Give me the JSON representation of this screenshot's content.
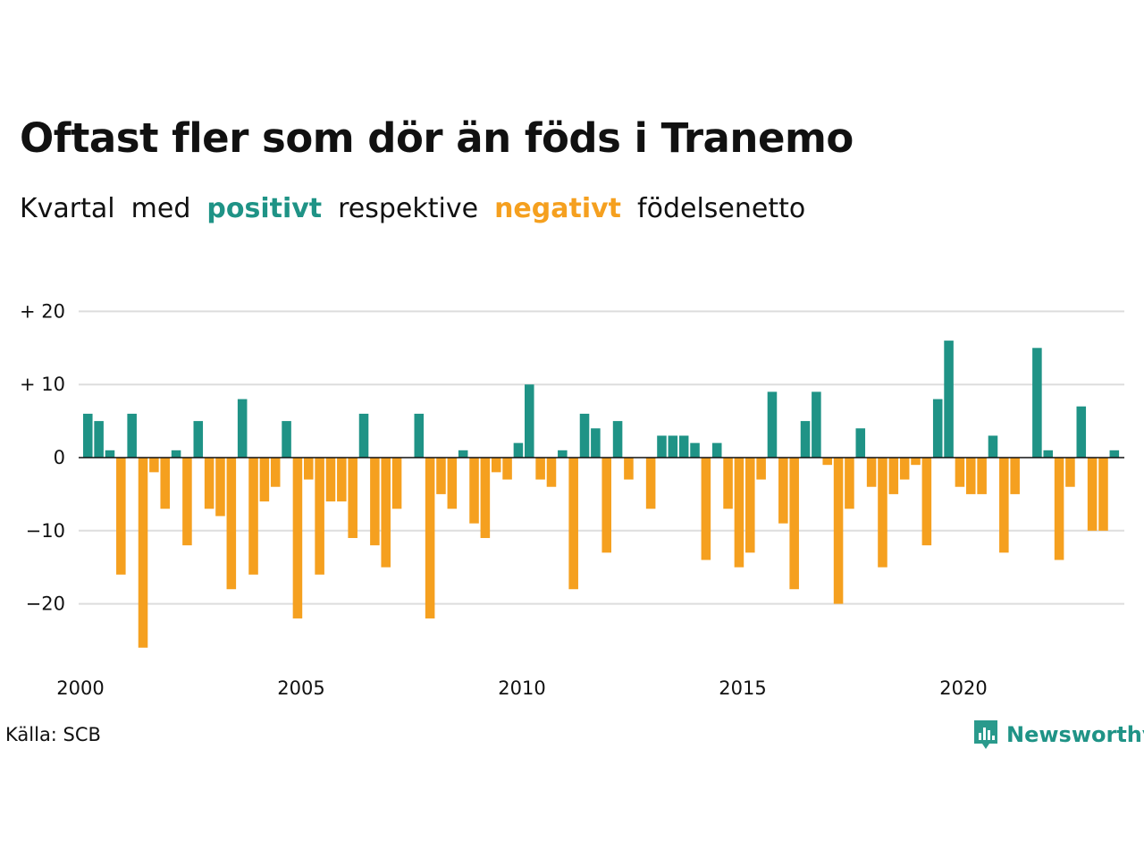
{
  "colors": {
    "positive": "#1f9386",
    "negative": "#f5a01f",
    "grid": "#dddddd",
    "baseline": "#111111"
  },
  "subtitle": {
    "part1": "Kvartal",
    "part2": "med",
    "positive_word": "positivt",
    "part3": "respektive",
    "negative_word": "negativt",
    "part4": "födelsenetto"
  },
  "source": "Källa: SCB",
  "logo": {
    "text": "Newsworthy",
    "icon": "bar-chart-speech-icon"
  },
  "chart_data": {
    "type": "bar",
    "title": "Oftast fler som dör än föds i Tranemo",
    "xlabel": "",
    "ylabel": "",
    "ylim": [
      -28,
      22
    ],
    "y_ticks": [
      20,
      10,
      0,
      -10,
      -20
    ],
    "y_tick_labels": [
      "+ 20",
      "+ 10",
      "0",
      "−10",
      "−20"
    ],
    "x_tick_labels": [
      "2000",
      "2005",
      "2010",
      "2015",
      "2020"
    ],
    "start_year": 2000,
    "quarters_per_year": 4,
    "grid": true,
    "values": [
      6,
      5,
      1,
      -16,
      6,
      -26,
      -2,
      -7,
      1,
      -12,
      5,
      -7,
      -8,
      -18,
      8,
      -16,
      -6,
      -4,
      5,
      -22,
      -3,
      -16,
      -6,
      -6,
      -11,
      6,
      -12,
      -15,
      -7,
      0,
      6,
      -22,
      -5,
      -7,
      1,
      -9,
      -11,
      -2,
      -3,
      2,
      10,
      -3,
      -4,
      1,
      -18,
      6,
      4,
      -13,
      5,
      -3,
      0,
      -7,
      3,
      3,
      3,
      2,
      -14,
      2,
      -7,
      -15,
      -13,
      -3,
      9,
      -9,
      -18,
      5,
      9,
      -1,
      -20,
      -7,
      4,
      -4,
      -15,
      -5,
      -3,
      -1,
      -12,
      8,
      16,
      -4,
      -5,
      -5,
      3,
      -13,
      -5,
      0,
      15,
      1,
      -14,
      -4,
      7,
      -10,
      -10,
      1
    ]
  }
}
